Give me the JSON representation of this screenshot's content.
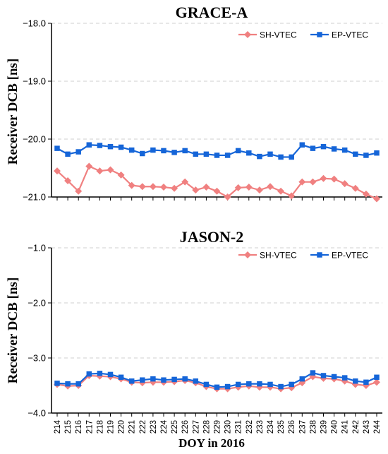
{
  "chart_data": [
    {
      "type": "line",
      "title": "GRACE-A",
      "ylabel": "Receiver DCB [ns]",
      "xlabel": "",
      "ylim": [
        -21.0,
        -18.0
      ],
      "yticks": [
        -18.0,
        -19.0,
        -20.0,
        -21.0
      ],
      "ytick_labels": [
        "−18.0",
        "−19.0",
        "−20.0",
        "−21.0"
      ],
      "grid": true,
      "legend": "top-right",
      "x": [
        214,
        215,
        216,
        217,
        218,
        219,
        220,
        221,
        222,
        223,
        224,
        225,
        226,
        227,
        228,
        229,
        230,
        231,
        232,
        233,
        234,
        235,
        236,
        237,
        238,
        239,
        240,
        241,
        242,
        243,
        244
      ],
      "series": [
        {
          "name": "SH-VTEC",
          "color": "#f08080",
          "marker": "diamond",
          "values": [
            -20.55,
            -20.72,
            -20.9,
            -20.47,
            -20.55,
            -20.53,
            -20.62,
            -20.8,
            -20.82,
            -20.82,
            -20.83,
            -20.85,
            -20.74,
            -20.88,
            -20.83,
            -20.9,
            -21.0,
            -20.84,
            -20.83,
            -20.88,
            -20.82,
            -20.9,
            -20.98,
            -20.74,
            -20.74,
            -20.68,
            -20.69,
            -20.77,
            -20.85,
            -20.95,
            -21.03
          ]
        },
        {
          "name": "EP-VTEC",
          "color": "#1565d8",
          "marker": "square",
          "values": [
            -20.16,
            -20.26,
            -20.22,
            -20.1,
            -20.11,
            -20.13,
            -20.14,
            -20.19,
            -20.25,
            -20.19,
            -20.2,
            -20.23,
            -20.2,
            -20.26,
            -20.26,
            -20.28,
            -20.28,
            -20.2,
            -20.24,
            -20.3,
            -20.26,
            -20.31,
            -20.31,
            -20.1,
            -20.16,
            -20.13,
            -20.17,
            -20.19,
            -20.26,
            -20.28,
            -20.24
          ]
        }
      ]
    },
    {
      "type": "line",
      "title": "JASON-2",
      "ylabel": "Receiver DCB [ns]",
      "xlabel": "DOY in 2016",
      "ylim": [
        -4.0,
        -1.0
      ],
      "yticks": [
        -1.0,
        -2.0,
        -3.0,
        -4.0
      ],
      "ytick_labels": [
        "−1.0",
        "−2.0",
        "−3.0",
        "−4.0"
      ],
      "grid": true,
      "legend": "top-right",
      "x": [
        214,
        215,
        216,
        217,
        218,
        219,
        220,
        221,
        222,
        223,
        224,
        225,
        226,
        227,
        228,
        229,
        230,
        231,
        232,
        233,
        234,
        235,
        236,
        237,
        238,
        239,
        240,
        241,
        242,
        243,
        244
      ],
      "series": [
        {
          "name": "SH-VTEC",
          "color": "#f08080",
          "marker": "diamond",
          "values": [
            -3.48,
            -3.51,
            -3.5,
            -3.32,
            -3.33,
            -3.34,
            -3.38,
            -3.44,
            -3.45,
            -3.44,
            -3.44,
            -3.43,
            -3.41,
            -3.45,
            -3.52,
            -3.56,
            -3.56,
            -3.53,
            -3.51,
            -3.53,
            -3.53,
            -3.56,
            -3.54,
            -3.45,
            -3.34,
            -3.37,
            -3.38,
            -3.42,
            -3.48,
            -3.5,
            -3.44
          ]
        },
        {
          "name": "EP-VTEC",
          "color": "#1565d8",
          "marker": "square",
          "values": [
            -3.46,
            -3.47,
            -3.47,
            -3.29,
            -3.28,
            -3.3,
            -3.35,
            -3.42,
            -3.4,
            -3.38,
            -3.4,
            -3.39,
            -3.38,
            -3.42,
            -3.48,
            -3.53,
            -3.52,
            -3.48,
            -3.47,
            -3.47,
            -3.48,
            -3.52,
            -3.48,
            -3.38,
            -3.27,
            -3.32,
            -3.34,
            -3.36,
            -3.42,
            -3.44,
            -3.35
          ]
        }
      ]
    }
  ]
}
